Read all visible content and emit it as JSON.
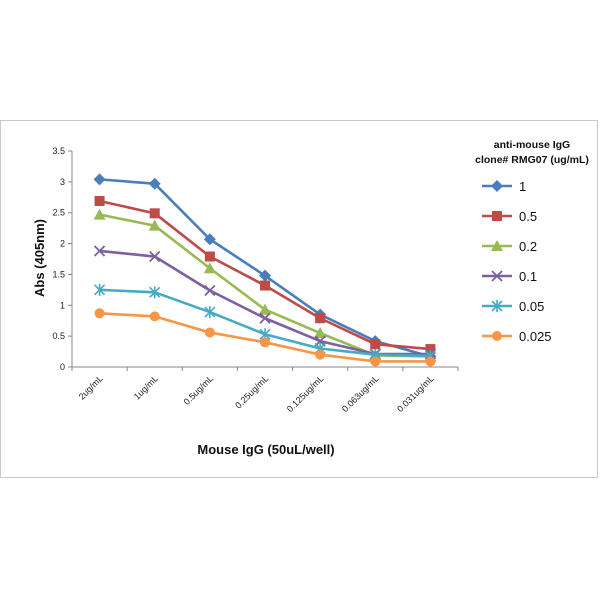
{
  "chart_data": {
    "type": "line",
    "categories": [
      "2ug/mL",
      "1ug/mL",
      "0.5ug/mL",
      "0.25ug/mL",
      "0.125ug/mL",
      "0.063ug/mL",
      "0.031ug/mL"
    ],
    "xlabel": "Mouse IgG (50uL/well)",
    "ylabel": "Abs (405nm)",
    "ylim": [
      0,
      3.5
    ],
    "yticks": [
      "0",
      "0.5",
      "1",
      "1.5",
      "2",
      "2.5",
      "3",
      "3.5"
    ],
    "grid": false,
    "legend": {
      "title_lines": [
        "anti-mouse IgG",
        "clone# RMG07 (ug/mL)"
      ],
      "placement": "right"
    },
    "series": [
      {
        "name": "1",
        "color": "#4a7ebb",
        "marker": "diamond",
        "values": [
          3.04,
          2.97,
          2.07,
          1.48,
          0.85,
          0.42,
          0.17
        ]
      },
      {
        "name": "0.5",
        "color": "#be4b48",
        "marker": "square",
        "values": [
          2.69,
          2.49,
          1.79,
          1.32,
          0.79,
          0.37,
          0.29
        ]
      },
      {
        "name": "0.2",
        "color": "#98b954",
        "marker": "triangle",
        "values": [
          2.47,
          2.29,
          1.6,
          0.93,
          0.55,
          0.19,
          0.17
        ]
      },
      {
        "name": "0.1",
        "color": "#7d60a0",
        "marker": "x",
        "values": [
          1.88,
          1.79,
          1.24,
          0.79,
          0.42,
          0.21,
          0.21
        ]
      },
      {
        "name": "0.05",
        "color": "#46aac5",
        "marker": "star",
        "values": [
          1.25,
          1.21,
          0.89,
          0.53,
          0.3,
          0.2,
          0.18
        ]
      },
      {
        "name": "0.025",
        "color": "#f79646",
        "marker": "circle",
        "values": [
          0.87,
          0.82,
          0.56,
          0.4,
          0.2,
          0.09,
          0.09
        ]
      }
    ]
  }
}
